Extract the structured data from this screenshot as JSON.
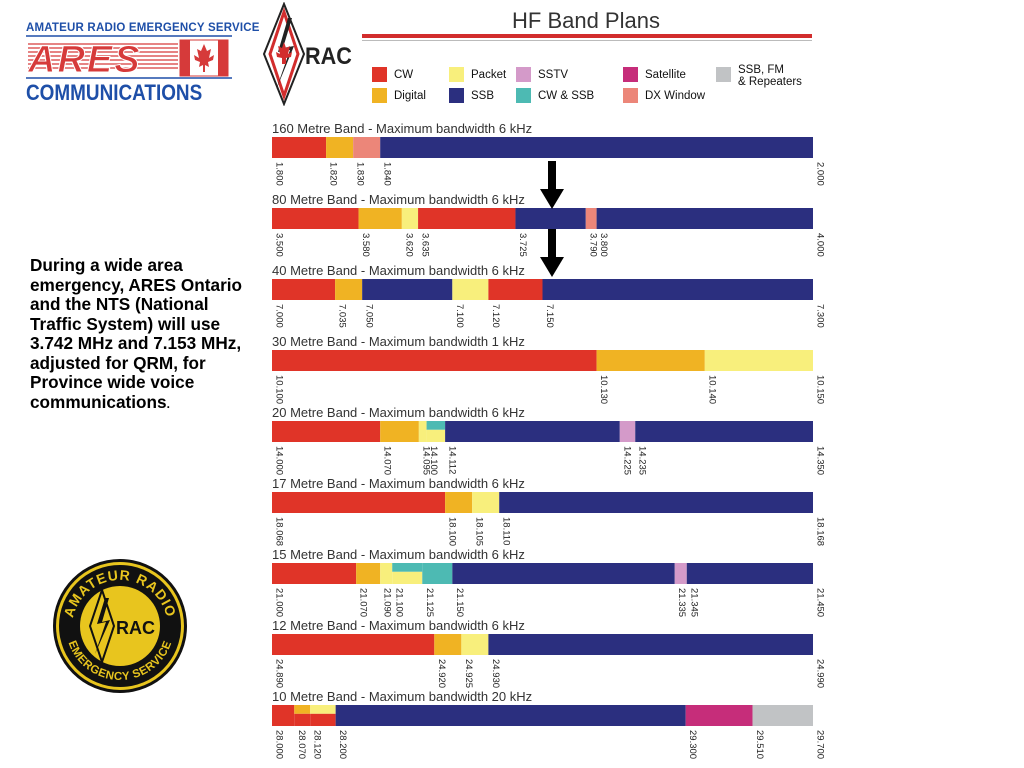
{
  "header": {
    "ares_top_text": "AMATEUR RADIO EMERGENCY SERVICE",
    "ares_word": "ARES",
    "ares_bottom_text": "COMMUNICATIONS",
    "rac_logo_text": "RAC",
    "title": "HF Band Plans"
  },
  "seal": {
    "top_text": "AMATEUR RADIO",
    "bottom_text": "EMERGENCY SERVICE",
    "center_text": "RAC"
  },
  "description": {
    "text": "During a wide area emergency, ARES Ontario and the NTS (National Traffic System) will use 3.742 MHz and 7.153 MHz, adjusted for QRM, for Province wide voice communications",
    "trailing": "."
  },
  "legend": [
    {
      "mode": "cw",
      "label": "CW",
      "color": "#e03428"
    },
    {
      "mode": "digital",
      "label": "Digital",
      "color": "#f0b323"
    },
    {
      "mode": "packet",
      "label": "Packet",
      "color": "#f8ef7c"
    },
    {
      "mode": "ssb",
      "label": "SSB",
      "color": "#2b2f7f"
    },
    {
      "mode": "sstv",
      "label": "SSTV",
      "color": "#d49ac9"
    },
    {
      "mode": "cwssb",
      "label": "CW & SSB",
      "color": "#4dbab3"
    },
    {
      "mode": "satellite",
      "label": "Satellite",
      "color": "#c62d7a"
    },
    {
      "mode": "dx",
      "label": "DX Window",
      "color": "#ec8679"
    },
    {
      "mode": "ssbfm",
      "label": "SSB, FM\n& Repeaters",
      "color": "#c1c3c5"
    }
  ],
  "arrows": [
    {
      "band": "80 Metre Band",
      "frequency": 3.742
    },
    {
      "band": "40 Metre Band",
      "frequency": 7.153
    }
  ],
  "bands": [
    {
      "label": "160 Metre Band - Maximum bandwidth 6 kHz",
      "range": [
        1.8,
        2.0
      ],
      "segments": [
        {
          "from": 1.8,
          "to": 1.82,
          "mode": "cw"
        },
        {
          "from": 1.82,
          "to": 1.83,
          "mode": "digital"
        },
        {
          "from": 1.83,
          "to": 1.84,
          "mode": "dx"
        },
        {
          "from": 1.84,
          "to": 2.0,
          "mode": "ssb"
        }
      ],
      "ticks": [
        {
          "value": 1.8,
          "label": "1.800"
        },
        {
          "value": 1.82,
          "label": "1.820"
        },
        {
          "value": 1.83,
          "label": "1.830"
        },
        {
          "value": 1.84,
          "label": "1.840"
        },
        {
          "value": 2.0,
          "label": "2.000"
        }
      ]
    },
    {
      "label": "80 Metre Band - Maximum bandwidth 6 kHz",
      "range": [
        3.5,
        4.0
      ],
      "segments": [
        {
          "from": 3.5,
          "to": 3.58,
          "mode": "cw"
        },
        {
          "from": 3.58,
          "to": 3.62,
          "mode": "digital"
        },
        {
          "from": 3.62,
          "to": 3.635,
          "mode": "packet"
        },
        {
          "from": 3.635,
          "to": 3.725,
          "mode": "cw"
        },
        {
          "from": 3.725,
          "to": 3.79,
          "mode": "ssb"
        },
        {
          "from": 3.79,
          "to": 3.8,
          "mode": "dx"
        },
        {
          "from": 3.8,
          "to": 4.0,
          "mode": "ssb"
        }
      ],
      "ticks": [
        {
          "value": 3.5,
          "label": "3.500"
        },
        {
          "value": 3.58,
          "label": "3.580"
        },
        {
          "value": 3.62,
          "label": "3.620"
        },
        {
          "value": 3.635,
          "label": "3.635"
        },
        {
          "value": 3.725,
          "label": "3.725"
        },
        {
          "value": 3.79,
          "label": "3.790"
        },
        {
          "value": 3.8,
          "label": "3.800"
        },
        {
          "value": 4.0,
          "label": "4.000"
        }
      ]
    },
    {
      "label": "40 Metre Band - Maximum bandwidth 6 kHz",
      "range": [
        7.0,
        7.3
      ],
      "segments": [
        {
          "from": 7.0,
          "to": 7.035,
          "mode": "cw"
        },
        {
          "from": 7.035,
          "to": 7.05,
          "mode": "digital"
        },
        {
          "from": 7.05,
          "to": 7.1,
          "mode": "ssb"
        },
        {
          "from": 7.1,
          "to": 7.12,
          "mode": "packet"
        },
        {
          "from": 7.12,
          "to": 7.15,
          "mode": "cw"
        },
        {
          "from": 7.15,
          "to": 7.3,
          "mode": "ssb"
        }
      ],
      "ticks": [
        {
          "value": 7.0,
          "label": "7.000"
        },
        {
          "value": 7.035,
          "label": "7.035"
        },
        {
          "value": 7.05,
          "label": "7.050"
        },
        {
          "value": 7.1,
          "label": "7.100"
        },
        {
          "value": 7.12,
          "label": "7.120"
        },
        {
          "value": 7.15,
          "label": "7.150"
        },
        {
          "value": 7.3,
          "label": "7.300"
        }
      ]
    },
    {
      "label": "30 Metre Band - Maximum bandwidth 1 kHz",
      "range": [
        10.1,
        10.15
      ],
      "segments": [
        {
          "from": 10.1,
          "to": 10.13,
          "mode": "cw"
        },
        {
          "from": 10.13,
          "to": 10.14,
          "mode": "digital"
        },
        {
          "from": 10.14,
          "to": 10.15,
          "mode": "packet"
        }
      ],
      "ticks": [
        {
          "value": 10.1,
          "label": "10.100"
        },
        {
          "value": 10.13,
          "label": "10.130"
        },
        {
          "value": 10.14,
          "label": "10.140"
        },
        {
          "value": 10.15,
          "label": "10.150"
        }
      ]
    },
    {
      "label": "20 Metre Band - Maximum bandwidth 6 kHz",
      "range": [
        14.0,
        14.35
      ],
      "segments": [
        {
          "from": 14.0,
          "to": 14.07,
          "mode": "cw"
        },
        {
          "from": 14.07,
          "to": 14.095,
          "mode": "digital"
        },
        {
          "from": 14.095,
          "to": 14.1,
          "mode": "packet"
        },
        {
          "from": 14.1,
          "to": 14.112,
          "mode": "cwssb",
          "upper_mode": "cwssb",
          "lower_mode": "packet"
        },
        {
          "from": 14.112,
          "to": 14.225,
          "mode": "ssb"
        },
        {
          "from": 14.225,
          "to": 14.235,
          "mode": "sstv"
        },
        {
          "from": 14.235,
          "to": 14.35,
          "mode": "ssb"
        }
      ],
      "ticks": [
        {
          "value": 14.0,
          "label": "14.000"
        },
        {
          "value": 14.07,
          "label": "14.070"
        },
        {
          "value": 14.095,
          "label": "14.095"
        },
        {
          "value": 14.1,
          "label": "14.100"
        },
        {
          "value": 14.112,
          "label": "14.112"
        },
        {
          "value": 14.225,
          "label": "14.225"
        },
        {
          "value": 14.235,
          "label": "14.235"
        },
        {
          "value": 14.35,
          "label": "14.350"
        }
      ]
    },
    {
      "label": "17 Metre Band - Maximum bandwidth 6 kHz",
      "range": [
        18.068,
        18.168
      ],
      "segments": [
        {
          "from": 18.068,
          "to": 18.1,
          "mode": "cw"
        },
        {
          "from": 18.1,
          "to": 18.105,
          "mode": "digital"
        },
        {
          "from": 18.105,
          "to": 18.11,
          "mode": "packet"
        },
        {
          "from": 18.11,
          "to": 18.168,
          "mode": "ssb"
        }
      ],
      "ticks": [
        {
          "value": 18.068,
          "label": "18.068"
        },
        {
          "value": 18.1,
          "label": "18.100"
        },
        {
          "value": 18.105,
          "label": "18.105"
        },
        {
          "value": 18.11,
          "label": "18.110"
        },
        {
          "value": 18.168,
          "label": "18.168"
        }
      ]
    },
    {
      "label": "15 Metre Band - Maximum bandwidth 6 kHz",
      "range": [
        21.0,
        21.45
      ],
      "segments": [
        {
          "from": 21.0,
          "to": 21.07,
          "mode": "cw"
        },
        {
          "from": 21.07,
          "to": 21.09,
          "mode": "digital"
        },
        {
          "from": 21.09,
          "to": 21.1,
          "mode": "packet"
        },
        {
          "from": 21.1,
          "to": 21.125,
          "mode": "cwssb",
          "upper_mode": "cwssb",
          "lower_mode": "packet"
        },
        {
          "from": 21.125,
          "to": 21.15,
          "mode": "cwssb"
        },
        {
          "from": 21.15,
          "to": 21.335,
          "mode": "ssb"
        },
        {
          "from": 21.335,
          "to": 21.345,
          "mode": "sstv"
        },
        {
          "from": 21.345,
          "to": 21.45,
          "mode": "ssb"
        }
      ],
      "ticks": [
        {
          "value": 21.0,
          "label": "21.000"
        },
        {
          "value": 21.07,
          "label": "21.070"
        },
        {
          "value": 21.09,
          "label": "21.090"
        },
        {
          "value": 21.1,
          "label": "21.100"
        },
        {
          "value": 21.125,
          "label": "21.125"
        },
        {
          "value": 21.15,
          "label": "21.150"
        },
        {
          "value": 21.335,
          "label": "21.335"
        },
        {
          "value": 21.345,
          "label": "21.345"
        },
        {
          "value": 21.45,
          "label": "21.450"
        }
      ]
    },
    {
      "label": "12 Metre Band - Maximum bandwidth 6 kHz",
      "range": [
        24.89,
        24.99
      ],
      "segments": [
        {
          "from": 24.89,
          "to": 24.92,
          "mode": "cw"
        },
        {
          "from": 24.92,
          "to": 24.925,
          "mode": "digital"
        },
        {
          "from": 24.925,
          "to": 24.93,
          "mode": "packet"
        },
        {
          "from": 24.93,
          "to": 24.99,
          "mode": "ssb"
        }
      ],
      "ticks": [
        {
          "value": 24.89,
          "label": "24.890"
        },
        {
          "value": 24.92,
          "label": "24.920"
        },
        {
          "value": 24.925,
          "label": "24.925"
        },
        {
          "value": 24.93,
          "label": "24.930"
        },
        {
          "value": 24.99,
          "label": "24.990"
        }
      ]
    },
    {
      "label": "10 Metre Band - Maximum bandwidth 20 kHz",
      "range": [
        28.0,
        29.7
      ],
      "segments": [
        {
          "from": 28.0,
          "to": 28.07,
          "mode": "cw"
        },
        {
          "from": 28.07,
          "to": 28.12,
          "mode": "digital",
          "upper_mode": "digital",
          "lower_mode": "cw"
        },
        {
          "from": 28.12,
          "to": 28.2,
          "mode": "packet",
          "upper_mode": "packet",
          "lower_mode": "cw"
        },
        {
          "from": 28.2,
          "to": 29.3,
          "mode": "ssb"
        },
        {
          "from": 29.3,
          "to": 29.51,
          "mode": "satellite"
        },
        {
          "from": 29.51,
          "to": 29.7,
          "mode": "ssbfm"
        }
      ],
      "ticks": [
        {
          "value": 28.0,
          "label": "28.000"
        },
        {
          "value": 28.07,
          "label": "28.070"
        },
        {
          "value": 28.12,
          "label": "28.120"
        },
        {
          "value": 28.2,
          "label": "28.200"
        },
        {
          "value": 29.3,
          "label": "29.300"
        },
        {
          "value": 29.51,
          "label": "29.510"
        },
        {
          "value": 29.7,
          "label": "29.700"
        }
      ]
    }
  ]
}
